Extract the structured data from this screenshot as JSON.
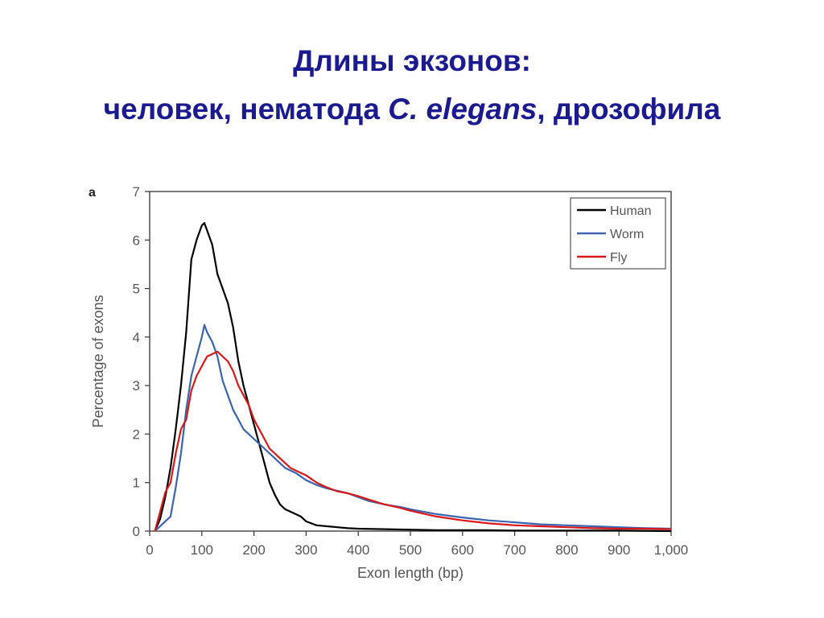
{
  "slide": {
    "title_line1": "Длины экзонов:",
    "title_line2_part1": "человек, нематода ",
    "title_line2_italic": "C. elegans",
    "title_line2_part2": ", дрозофила"
  },
  "chart_data": {
    "type": "line",
    "panel_label": "a",
    "xlabel": "Exon length (bp)",
    "ylabel": "Percentage of exons",
    "xlim": [
      0,
      1000
    ],
    "ylim": [
      0,
      7
    ],
    "xticks": [
      0,
      100,
      200,
      300,
      400,
      500,
      600,
      700,
      800,
      900,
      1000
    ],
    "xtick_labels": [
      "0",
      "100",
      "200",
      "300",
      "400",
      "500",
      "600",
      "700",
      "800",
      "900",
      "1,000"
    ],
    "yticks": [
      0,
      1,
      2,
      3,
      4,
      5,
      6,
      7
    ],
    "grid": false,
    "legend_position": "top-right",
    "series": [
      {
        "name": "Human",
        "color": "#000000",
        "x": [
          10,
          20,
          30,
          40,
          50,
          60,
          70,
          80,
          90,
          100,
          105,
          110,
          120,
          130,
          140,
          150,
          160,
          170,
          180,
          190,
          200,
          210,
          220,
          230,
          240,
          250,
          260,
          270,
          280,
          290,
          300,
          320,
          340,
          360,
          380,
          400,
          450,
          500,
          550,
          600,
          650,
          700,
          800,
          900,
          1000
        ],
        "y": [
          0.0,
          0.25,
          0.7,
          1.3,
          2.1,
          3.0,
          4.1,
          5.6,
          6.0,
          6.3,
          6.35,
          6.2,
          5.9,
          5.3,
          5.0,
          4.7,
          4.2,
          3.5,
          3.0,
          2.6,
          2.2,
          1.8,
          1.4,
          1.0,
          0.75,
          0.55,
          0.45,
          0.4,
          0.35,
          0.3,
          0.2,
          0.12,
          0.1,
          0.08,
          0.06,
          0.05,
          0.04,
          0.03,
          0.02,
          0.02,
          0.02,
          0.01,
          0.01,
          0.01,
          0.0
        ]
      },
      {
        "name": "Worm",
        "color": "#3a64b0",
        "x": [
          10,
          20,
          30,
          40,
          50,
          60,
          70,
          80,
          90,
          100,
          105,
          110,
          120,
          130,
          140,
          150,
          160,
          170,
          180,
          190,
          200,
          210,
          220,
          230,
          240,
          250,
          260,
          280,
          300,
          320,
          340,
          360,
          380,
          400,
          420,
          450,
          480,
          500,
          550,
          600,
          650,
          700,
          750,
          800,
          850,
          900,
          950,
          1000
        ],
        "y": [
          0.0,
          0.1,
          0.2,
          0.3,
          0.9,
          1.6,
          2.5,
          3.2,
          3.6,
          4.0,
          4.25,
          4.1,
          3.9,
          3.6,
          3.1,
          2.8,
          2.5,
          2.3,
          2.1,
          2.0,
          1.9,
          1.8,
          1.7,
          1.6,
          1.5,
          1.4,
          1.3,
          1.2,
          1.05,
          0.95,
          0.88,
          0.83,
          0.78,
          0.7,
          0.62,
          0.55,
          0.5,
          0.45,
          0.35,
          0.28,
          0.22,
          0.18,
          0.14,
          0.12,
          0.1,
          0.08,
          0.06,
          0.05
        ]
      },
      {
        "name": "Fly",
        "color": "#d81818",
        "x": [
          10,
          20,
          30,
          40,
          50,
          60,
          70,
          80,
          90,
          100,
          110,
          120,
          130,
          140,
          150,
          160,
          170,
          180,
          190,
          200,
          210,
          220,
          230,
          240,
          250,
          260,
          270,
          280,
          290,
          300,
          320,
          340,
          360,
          380,
          400,
          420,
          450,
          480,
          500,
          550,
          600,
          650,
          700,
          750,
          800,
          850,
          900,
          950,
          1000
        ],
        "y": [
          0.0,
          0.4,
          0.8,
          1.0,
          1.6,
          2.1,
          2.3,
          2.9,
          3.2,
          3.4,
          3.6,
          3.65,
          3.7,
          3.6,
          3.5,
          3.3,
          3.0,
          2.8,
          2.6,
          2.3,
          2.1,
          1.9,
          1.7,
          1.6,
          1.5,
          1.4,
          1.3,
          1.25,
          1.2,
          1.15,
          1.0,
          0.9,
          0.82,
          0.78,
          0.72,
          0.65,
          0.55,
          0.48,
          0.42,
          0.3,
          0.22,
          0.16,
          0.12,
          0.1,
          0.08,
          0.06,
          0.05,
          0.05,
          0.04
        ]
      }
    ]
  }
}
